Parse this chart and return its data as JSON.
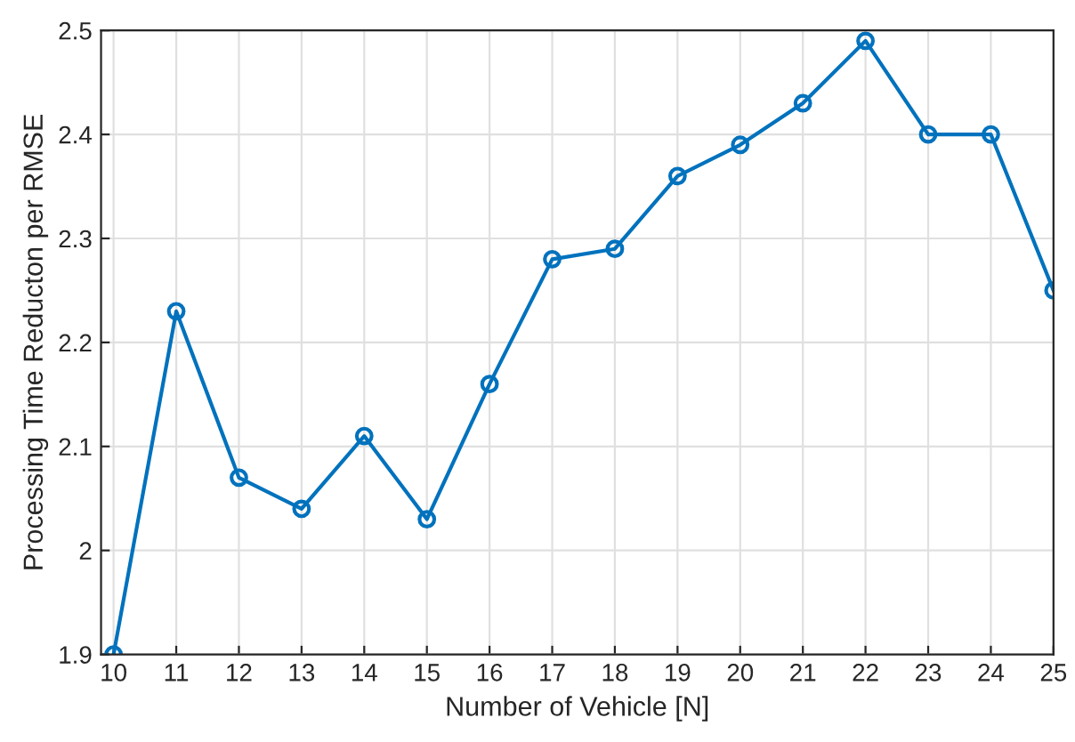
{
  "chart_data": {
    "type": "line",
    "xlabel": "Number of Vehicle [N]",
    "ylabel": "Processing Time Reducton per RMSE",
    "x": [
      10,
      11,
      12,
      13,
      14,
      15,
      16,
      17,
      18,
      19,
      20,
      21,
      22,
      23,
      24,
      25
    ],
    "series": [
      {
        "color": "#0072bd",
        "values": [
          1.9,
          2.23,
          2.07,
          2.04,
          2.11,
          2.03,
          2.16,
          2.28,
          2.29,
          2.36,
          2.39,
          2.43,
          2.49,
          2.4,
          2.4,
          2.25
        ]
      }
    ],
    "xlim": [
      9.8,
      25
    ],
    "xticks": [
      10,
      11,
      12,
      13,
      14,
      15,
      16,
      17,
      18,
      19,
      20,
      21,
      22,
      23,
      24,
      25
    ],
    "ylim": [
      1.9,
      2.5
    ],
    "yticks": [
      1.9,
      2,
      2.1,
      2.2,
      2.3,
      2.4,
      2.5
    ],
    "grid": true,
    "marker": "circle",
    "line_style": "solid"
  }
}
